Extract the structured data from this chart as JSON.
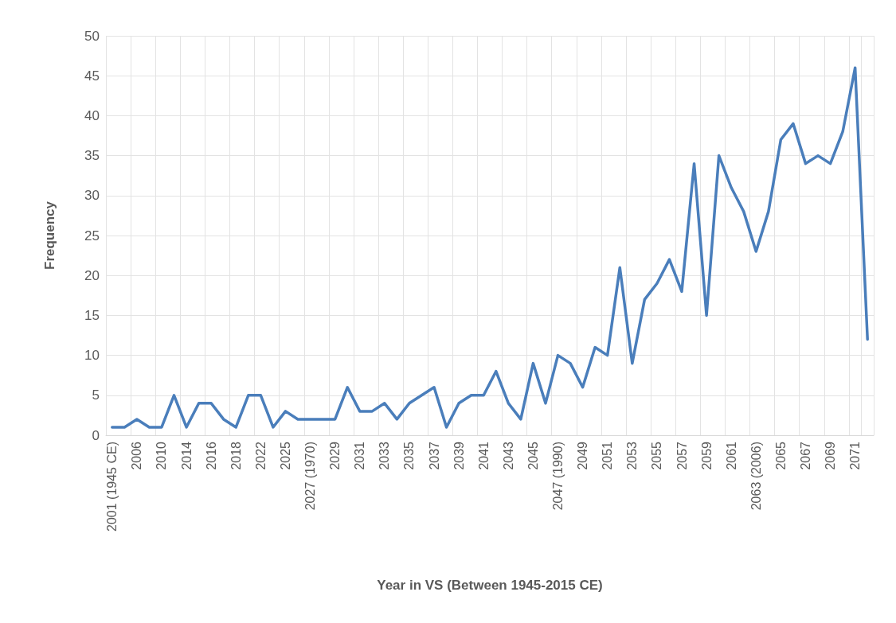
{
  "chart_data": {
    "type": "line",
    "xlabel": "Year in VS (Between 1945-2015 CE)",
    "ylabel": "Frequency",
    "categories": [
      "2001 (1945 CE)",
      null,
      "2006",
      null,
      "2010",
      null,
      "2014",
      null,
      "2016",
      null,
      "2018",
      null,
      "2022",
      null,
      "2025",
      null,
      "2027 (1970)",
      null,
      "2029",
      null,
      "2031",
      null,
      "2033",
      null,
      "2035",
      null,
      "2037",
      null,
      "2039",
      null,
      "2041",
      null,
      "2043",
      null,
      "2045",
      null,
      "2047 (1990)",
      null,
      "2049",
      null,
      "2051",
      null,
      "2053",
      null,
      "2055",
      null,
      "2057",
      null,
      "2059",
      null,
      "2061",
      null,
      "2063 (2006)",
      null,
      "2065",
      null,
      "2067",
      null,
      "2069",
      null,
      "2071",
      null
    ],
    "series": [
      {
        "color": "#4a7ebb",
        "values": [
          1,
          1,
          2,
          1,
          1,
          5,
          1,
          4,
          4,
          2,
          1,
          5,
          5,
          1,
          3,
          2,
          2,
          2,
          2,
          6,
          3,
          3,
          4,
          2,
          4,
          5,
          6,
          1,
          4,
          5,
          5,
          8,
          4,
          2,
          9,
          4,
          10,
          9,
          6,
          11,
          10,
          21,
          9,
          17,
          19,
          22,
          18,
          34,
          15,
          35,
          31,
          28,
          23,
          28,
          37,
          39,
          34,
          35,
          34,
          38,
          46,
          12
        ]
      }
    ],
    "ylim": [
      0,
      50
    ],
    "yticks": [
      0,
      5,
      10,
      15,
      20,
      25,
      30,
      35,
      40,
      45,
      50
    ],
    "grid": true,
    "marker": "none",
    "line_style": "solid"
  }
}
